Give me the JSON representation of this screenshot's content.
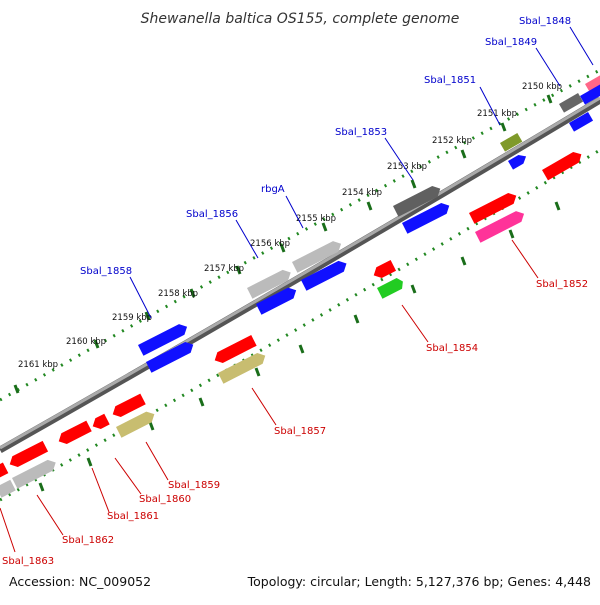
{
  "title": "Shewanella baltica OS155, complete genome",
  "footer": {
    "accession": "Accession: NC_009052",
    "summary": "Topology: circular; Length: 5,127,376 bp; Genes: 4,448"
  },
  "colors": {
    "red": "#ff0000",
    "blue": "#0000ff",
    "gray": "#bbbbbb",
    "darkgray": "#606060",
    "olive": "#7f9a2a",
    "green": "#22cc22",
    "pink": "#ff3399",
    "khaki": "#c8bd70",
    "backbone": "#888888",
    "ruler": "#228822",
    "label_top": "#0000cc",
    "label_bottom": "#cc0000"
  },
  "kbp_labels": [
    "2150 kbp",
    "2151 kbp",
    "2152 kbp",
    "2153 kbp",
    "2154 kbp",
    "2155 kbp",
    "2156 kbp",
    "2157 kbp",
    "2158 kbp",
    "2159 kbp",
    "2160 kbp",
    "2161 kbp"
  ],
  "genes_top": [
    {
      "name": "Sbal_1848",
      "color": "blue"
    },
    {
      "name": "Sbal_1849",
      "color": "blue"
    },
    {
      "name": "Sbal_1851",
      "color": "olive"
    },
    {
      "name": "Sbal_1853",
      "color": "darkgray"
    },
    {
      "name": "rbgA",
      "color": "gray"
    },
    {
      "name": "Sbal_1856",
      "color": "gray"
    },
    {
      "name": "Sbal_1858",
      "color": "blue"
    }
  ],
  "genes_bottom": [
    {
      "name": "Sbal_1852",
      "color": "pink"
    },
    {
      "name": "Sbal_1854",
      "color": "green"
    },
    {
      "name": "Sbal_1857",
      "color": "khaki"
    },
    {
      "name": "Sbal_1859",
      "color": "khaki"
    },
    {
      "name": "Sbal_1860",
      "color": "red"
    },
    {
      "name": "Sbal_1861",
      "color": "red"
    },
    {
      "name": "Sbal_1862",
      "color": "red"
    },
    {
      "name": "Sbal_1863",
      "color": "gray"
    }
  ]
}
